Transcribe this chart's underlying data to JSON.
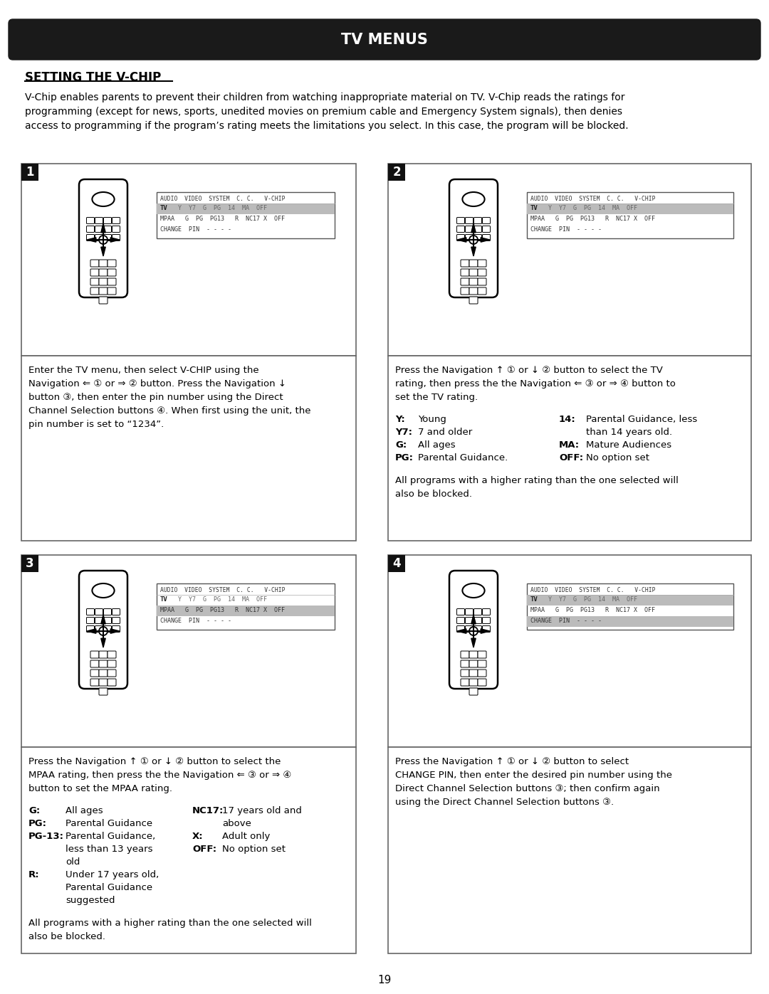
{
  "title": "TV MENUS",
  "title_bg": "#1a1a1a",
  "title_color": "#ffffff",
  "page_bg": "#ffffff",
  "section_title": "SETTING THE V-CHIP",
  "intro_text": "V-Chip enables parents to prevent their children from watching inappropriate material on TV. V-Chip reads the ratings for\nprogramming (except for news, sports, unedited movies on premium cable and Emergency System signals), then denies\naccess to programming if the program’s rating meets the limitations you select. In this case, the program will be blocked.",
  "box1_text": "Enter the TV menu, then select V-CHIP using the\nNavigation ⇐ ① or ⇒ ② button. Press the Navigation ↓\nbutton ③, then enter the pin number using the Direct\nChannel Selection buttons ④. When first using the unit, the\npin number is set to “1234”.",
  "box2_text": "Press the Navigation ↑ ① or ↓ ② button to select the TV\nrating, then press the the Navigation ⇐ ③ or ⇒ ④ button to\nset the TV rating.",
  "box2_all_blocked": "All programs with a higher rating than the one selected will\nalso be blocked.",
  "box3_text": "Press the Navigation ↑ ① or ↓ ② button to select the\nMPAA rating, then press the the Navigation ⇐ ③ or ⇒ ④\nbutton to set the MPAA rating.",
  "box3_all_blocked": "All programs with a higher rating than the one selected will\nalso be blocked.",
  "box4_text": "Press the Navigation ↑ ① or ↓ ② button to select\nCHANGE PIN, then enter the desired pin number using the\nDirect Channel Selection buttons ③; then confirm again\nusing the Direct Channel Selection buttons ③.",
  "page_number": "19"
}
